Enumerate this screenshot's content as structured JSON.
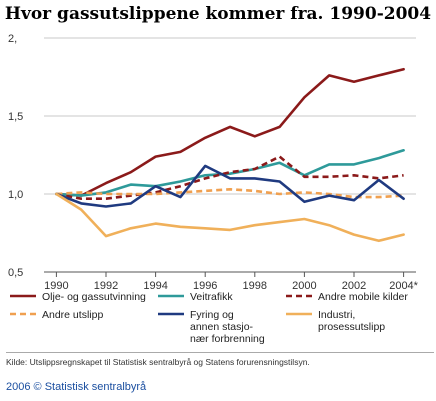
{
  "title": "Hvor gassutslippene kommer  fra. 1990-2004",
  "source": "Kilde: Utslippsregnskapet til Statistisk sentralbyrå og Statens forurensningstilsyn.",
  "credit": "2006 © Statistisk sentralbyrå",
  "chart_data": {
    "type": "line",
    "title": "Hvor gassutslippene kommer  fra. 1990-2004",
    "xlabel": "",
    "ylabel": "",
    "x": [
      1990,
      1991,
      1992,
      1993,
      1994,
      1995,
      1996,
      1997,
      1998,
      1999,
      2000,
      2001,
      2002,
      2003,
      2004
    ],
    "x_tick_labels": [
      "1990",
      "1992",
      "1994",
      "1996",
      "1998",
      "2000",
      "2002",
      "2004*"
    ],
    "x_tick_values": [
      1990,
      1992,
      1994,
      1996,
      1998,
      2000,
      2002,
      2004
    ],
    "y_tick_labels": [
      "0,5",
      "1,0",
      "1,5",
      "2,"
    ],
    "y_tick_values": [
      0.5,
      1.0,
      1.5,
      2.0
    ],
    "ylim": [
      0.5,
      2.0
    ],
    "xlim": [
      1989.5,
      2004.5
    ],
    "grid": "horizontal",
    "legend_position": "bottom",
    "series": [
      {
        "name": "Olje- og gassutvinning",
        "color": "#8b1a1a",
        "dash": "solid",
        "values": [
          1.0,
          0.99,
          1.07,
          1.14,
          1.24,
          1.27,
          1.36,
          1.43,
          1.37,
          1.43,
          1.62,
          1.76,
          1.72,
          1.76,
          1.8
        ]
      },
      {
        "name": "Veitrafikk",
        "color": "#2e9a9a",
        "dash": "solid",
        "values": [
          1.0,
          0.99,
          1.01,
          1.06,
          1.05,
          1.08,
          1.12,
          1.13,
          1.16,
          1.2,
          1.12,
          1.19,
          1.19,
          1.23,
          1.28
        ]
      },
      {
        "name": "Andre mobile kilder",
        "color": "#8b1a1a",
        "dash": "dashed",
        "values": [
          1.0,
          0.97,
          0.97,
          0.99,
          1.01,
          1.05,
          1.1,
          1.14,
          1.16,
          1.24,
          1.11,
          1.11,
          1.12,
          1.1,
          1.12
        ]
      },
      {
        "name": "Andre utslipp",
        "color": "#f0a050",
        "dash": "dashed",
        "values": [
          1.0,
          1.01,
          1.0,
          1.0,
          1.0,
          1.01,
          1.02,
          1.03,
          1.02,
          1.0,
          1.01,
          1.0,
          0.98,
          0.98,
          0.99
        ]
      },
      {
        "name": "Fyring og annen stasjonær forbrenning",
        "color": "#1f3a80",
        "dash": "solid",
        "values": [
          1.0,
          0.94,
          0.92,
          0.94,
          1.05,
          0.98,
          1.18,
          1.1,
          1.1,
          1.08,
          0.95,
          0.99,
          0.96,
          1.09,
          0.97
        ]
      },
      {
        "name": "Industri, prosessutslipp",
        "color": "#f0b05a",
        "dash": "solid",
        "values": [
          1.0,
          0.9,
          0.73,
          0.78,
          0.81,
          0.79,
          0.78,
          0.77,
          0.8,
          0.82,
          0.84,
          0.8,
          0.74,
          0.7,
          0.74
        ]
      }
    ]
  },
  "legend": [
    {
      "label_lines": [
        "Olje- og gassutvinning"
      ],
      "color": "#8b1a1a",
      "dash": "solid"
    },
    {
      "label_lines": [
        "Veitrafikk"
      ],
      "color": "#2e9a9a",
      "dash": "solid"
    },
    {
      "label_lines": [
        "Andre mobile kilder"
      ],
      "color": "#8b1a1a",
      "dash": "dashed"
    },
    {
      "label_lines": [
        "Andre utslipp"
      ],
      "color": "#f0a050",
      "dash": "dashed"
    },
    {
      "label_lines": [
        "Fyring og",
        "annen stasjo-",
        "nær forbrenning"
      ],
      "color": "#1f3a80",
      "dash": "solid"
    },
    {
      "label_lines": [
        "Industri,",
        "prosessutslipp"
      ],
      "color": "#f0b05a",
      "dash": "solid"
    }
  ]
}
